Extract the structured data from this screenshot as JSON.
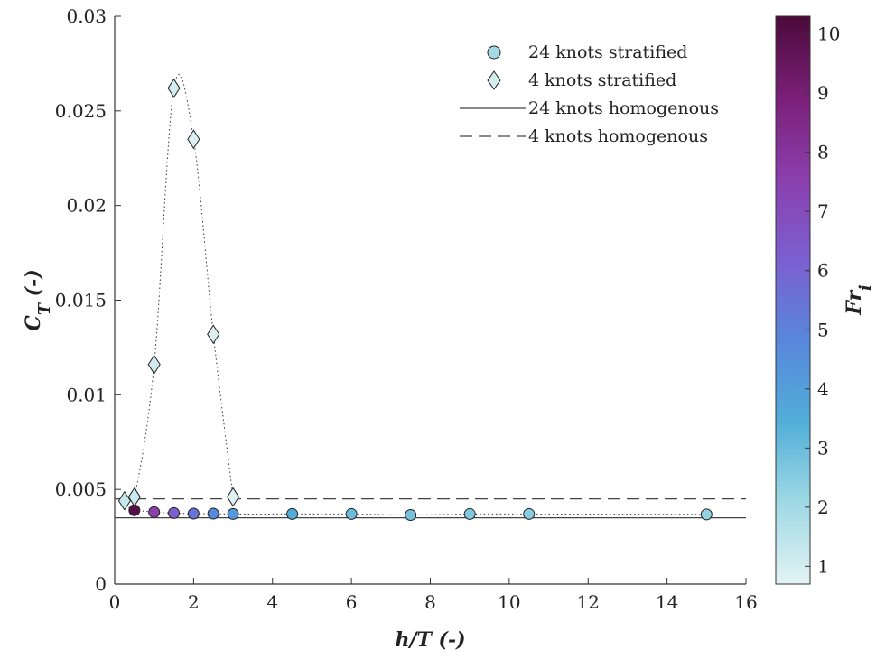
{
  "chart_data": {
    "type": "scatter",
    "title": "",
    "xlabel": "h/T (-)",
    "ylabel": "C_T (-)",
    "xlim": [
      0,
      16
    ],
    "ylim": [
      0,
      0.03
    ],
    "x_ticks": [
      0,
      2,
      4,
      6,
      8,
      10,
      12,
      14,
      16
    ],
    "y_ticks": [
      0,
      0.005,
      0.01,
      0.015,
      0.02,
      0.025,
      0.03
    ],
    "x_tick_labels": [
      "0",
      "2",
      "4",
      "6",
      "8",
      "10",
      "12",
      "14",
      "16"
    ],
    "y_tick_labels": [
      "0",
      "0.005",
      "0.01",
      "0.015",
      "0.02",
      "0.025",
      "0.03"
    ],
    "grid": false,
    "legend_position": "top-right",
    "colorbar": {
      "label": "Fr_i",
      "range": [
        0.7,
        10.3
      ],
      "ticks": [
        1,
        2,
        3,
        4,
        5,
        6,
        7,
        8,
        9,
        10
      ],
      "tick_labels": [
        "1",
        "2",
        "3",
        "4",
        "5",
        "6",
        "7",
        "8",
        "9",
        "10"
      ],
      "colormap_stops": [
        "#e3f3f4",
        "#9fd9e5",
        "#52aed8",
        "#5887db",
        "#7b5fd0",
        "#8b3fad",
        "#7a1f78",
        "#4a0a3a"
      ]
    },
    "series": [
      {
        "name": "24 knots stratified",
        "marker": "circle",
        "connect": "dotted",
        "x": [
          0.5,
          1.0,
          1.5,
          2.0,
          2.5,
          3.0,
          4.5,
          6.0,
          7.5,
          9.0,
          10.5,
          15.0
        ],
        "y": [
          0.0039,
          0.0038,
          0.00375,
          0.00372,
          0.00372,
          0.0037,
          0.0037,
          0.0037,
          0.00365,
          0.0037,
          0.0037,
          0.00368
        ],
        "fr": [
          10.0,
          7.5,
          6.2,
          5.5,
          4.7,
          4.2,
          3.5,
          3.0,
          2.8,
          2.6,
          2.5,
          2.3
        ]
      },
      {
        "name": "4 knots stratified",
        "marker": "diamond",
        "connect": "dotted",
        "x": [
          0.25,
          0.5,
          1.0,
          1.5,
          2.0,
          2.5,
          3.0
        ],
        "y": [
          0.0044,
          0.0046,
          0.0116,
          0.0262,
          0.0235,
          0.0132,
          0.0046
        ],
        "fr": [
          1.3,
          1.2,
          1.1,
          1.0,
          0.9,
          0.85,
          0.8
        ]
      },
      {
        "name": "24 knots homogenous",
        "line": "solid",
        "y_constant": 0.0035
      },
      {
        "name": "4 knots homogenous",
        "line": "dashed",
        "y_constant": 0.0045
      }
    ]
  }
}
